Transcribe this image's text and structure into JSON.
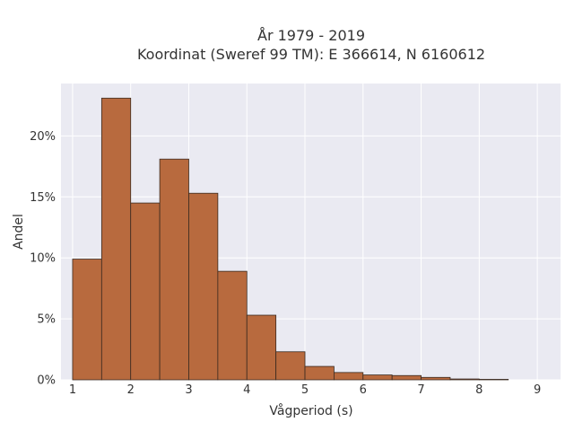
{
  "chart_data": {
    "type": "bar",
    "title_line1": "År 1979 - 2019",
    "title_line2": "Koordinat (Sweref 99 TM): E 366614, N 6160612",
    "xlabel": "Vågperiod (s)",
    "ylabel": "Andel",
    "xlim": [
      0.8,
      9.4
    ],
    "ylim": [
      0,
      0.243
    ],
    "xticks": [
      1,
      2,
      3,
      4,
      5,
      6,
      7,
      8,
      9
    ],
    "xtick_labels": [
      "1",
      "2",
      "3",
      "4",
      "5",
      "6",
      "7",
      "8",
      "9"
    ],
    "yticks": [
      0,
      0.05,
      0.1,
      0.15,
      0.2
    ],
    "ytick_labels": [
      "0%",
      "5%",
      "10%",
      "15%",
      "20%"
    ],
    "bin_edges": [
      1.0,
      1.5,
      2.0,
      2.5,
      3.0,
      3.5,
      4.0,
      4.5,
      5.0,
      5.5,
      6.0,
      6.5,
      7.0,
      7.5,
      8.0,
      8.5
    ],
    "values": [
      0.099,
      0.231,
      0.145,
      0.181,
      0.153,
      0.089,
      0.053,
      0.023,
      0.011,
      0.006,
      0.004,
      0.0035,
      0.002,
      0.0007,
      0.0004
    ],
    "bar_color": "#b86a3e",
    "edge_color": "#3a2a20",
    "plot_bg": "#eaeaf2",
    "grid": true
  }
}
